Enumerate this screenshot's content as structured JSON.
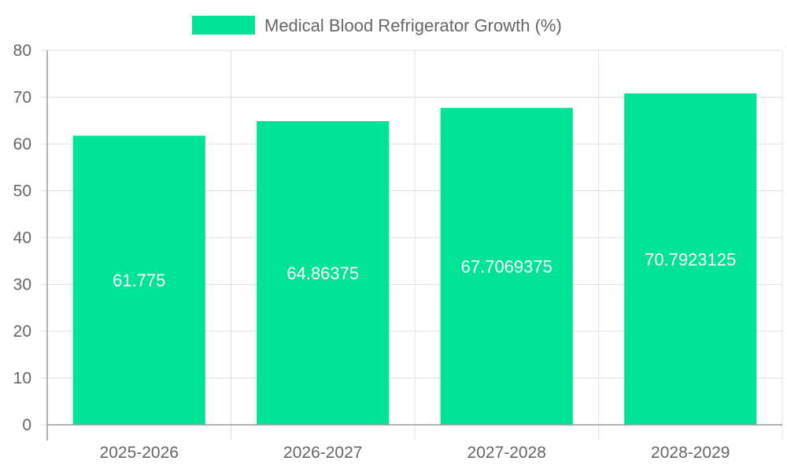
{
  "chart_data": {
    "type": "bar",
    "title": "",
    "xlabel": "",
    "ylabel": "",
    "categories": [
      "2025-2026",
      "2026-2027",
      "2027-2028",
      "2028-2029"
    ],
    "series": [
      {
        "name": "Medical Blood Refrigerator Growth (%)",
        "values": [
          61.775,
          64.86375,
          67.7069375,
          70.7923125
        ],
        "color": "#00e396"
      }
    ],
    "data_labels": [
      "61.775",
      "64.86375",
      "67.7069375",
      "70.7923125"
    ],
    "ylim": [
      0,
      80
    ],
    "yticks": [
      0,
      10,
      20,
      30,
      40,
      50,
      60,
      70,
      80
    ],
    "grid": true,
    "legend_position": "top"
  },
  "colors": {
    "grid": "#e0e0e0",
    "axis": "#999999",
    "text": "#666666",
    "label": "#ffffff"
  }
}
